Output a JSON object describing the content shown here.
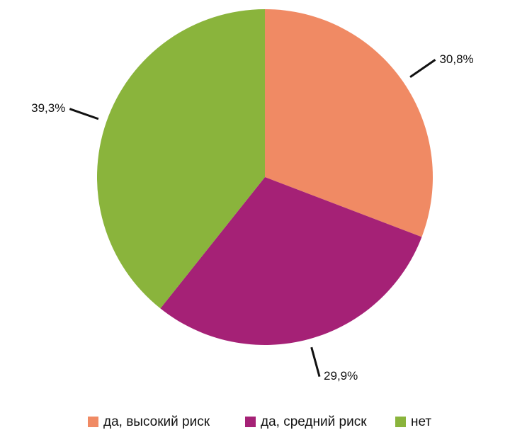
{
  "chart_data": {
    "type": "pie",
    "categories": [
      "да, высокий риск",
      "да, средний риск",
      "нет"
    ],
    "values": [
      30.8,
      29.9,
      39.3
    ],
    "value_labels": [
      "30,8%",
      "29,9%",
      "39,3%"
    ],
    "colors": [
      "#f08a64",
      "#a52176",
      "#8ab43c"
    ],
    "legend": "bottom"
  }
}
